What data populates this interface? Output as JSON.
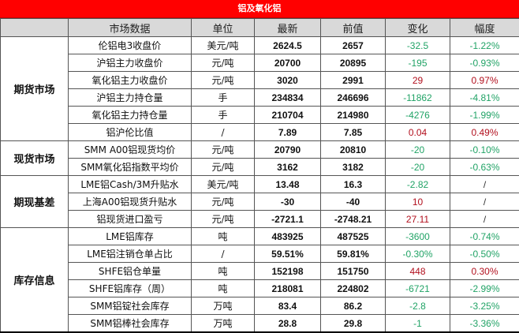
{
  "title": "铝及氧化铝",
  "colors": {
    "title_bg": "#ff0000",
    "header_bg": "#d9d9d9",
    "negative": "#21a366",
    "positive": "#b2101e"
  },
  "headers": [
    "",
    "市场数据",
    "单位",
    "最新",
    "前值",
    "变化",
    "幅度"
  ],
  "groups": [
    {
      "category": "期货市场",
      "rows": [
        {
          "name": "伦铝电3收盘价",
          "unit": "美元/吨",
          "latest": "2624.5",
          "prev": "2657",
          "change": "-32.5",
          "pct": "-1.22%",
          "dir": "neg"
        },
        {
          "name": "沪铝主力收盘价",
          "unit": "元/吨",
          "latest": "20700",
          "prev": "20895",
          "change": "-195",
          "pct": "-0.93%",
          "dir": "neg"
        },
        {
          "name": "氧化铝主力收盘价",
          "unit": "元/吨",
          "latest": "3020",
          "prev": "2991",
          "change": "29",
          "pct": "0.97%",
          "dir": "pos"
        },
        {
          "name": "沪铝主力持仓量",
          "unit": "手",
          "latest": "234834",
          "prev": "246696",
          "change": "-11862",
          "pct": "-4.81%",
          "dir": "neg"
        },
        {
          "name": "氧化铝主力持仓量",
          "unit": "手",
          "latest": "210704",
          "prev": "214980",
          "change": "-4276",
          "pct": "-1.99%",
          "dir": "neg"
        },
        {
          "name": "铝沪伦比值",
          "unit": "/",
          "latest": "7.89",
          "prev": "7.85",
          "change": "0.04",
          "pct": "0.49%",
          "dir": "pos"
        }
      ]
    },
    {
      "category": "现货市场",
      "rows": [
        {
          "name": "SMM A00铝现货均价",
          "unit": "元/吨",
          "latest": "20790",
          "prev": "20810",
          "change": "-20",
          "pct": "-0.10%",
          "dir": "neg"
        },
        {
          "name": "SMM氧化铝指数平均价",
          "unit": "元/吨",
          "latest": "3162",
          "prev": "3182",
          "change": "-20",
          "pct": "-0.63%",
          "dir": "neg"
        }
      ]
    },
    {
      "category": "期现基差",
      "rows": [
        {
          "name": "LME铝Cash/3M升贴水",
          "unit": "美元/吨",
          "latest": "13.48",
          "prev": "16.3",
          "change": "-2.82",
          "pct": "/",
          "dir": "neg"
        },
        {
          "name": "上海A00铝现货升贴水",
          "unit": "元/吨",
          "latest": "-30",
          "prev": "-40",
          "change": "10",
          "pct": "/",
          "dir": "pos"
        },
        {
          "name": "铝现货进口盈亏",
          "unit": "元/吨",
          "latest": "-2721.1",
          "prev": "-2748.21",
          "change": "27.11",
          "pct": "/",
          "dir": "pos"
        }
      ]
    },
    {
      "category": "库存信息",
      "rows": [
        {
          "name": "LME铝库存",
          "unit": "吨",
          "latest": "483925",
          "prev": "487525",
          "change": "-3600",
          "pct": "-0.74%",
          "dir": "neg"
        },
        {
          "name": "LME铝注销仓单占比",
          "unit": "/",
          "latest": "59.51%",
          "prev": "59.81%",
          "change": "-0.30%",
          "pct": "-0.50%",
          "dir": "neg"
        },
        {
          "name": "SHFE铝仓单量",
          "unit": "吨",
          "latest": "152198",
          "prev": "151750",
          "change": "448",
          "pct": "0.30%",
          "dir": "pos"
        },
        {
          "name": "SHFE铝库存（周）",
          "unit": "吨",
          "latest": "218081",
          "prev": "224802",
          "change": "-6721",
          "pct": "-2.99%",
          "dir": "neg"
        },
        {
          "name": "SMM铝锭社会库存",
          "unit": "万吨",
          "latest": "83.4",
          "prev": "86.2",
          "change": "-2.8",
          "pct": "-3.25%",
          "dir": "neg"
        },
        {
          "name": "SMM铝棒社会库存",
          "unit": "万吨",
          "latest": "28.8",
          "prev": "29.8",
          "change": "-1",
          "pct": "-3.36%",
          "dir": "neg"
        }
      ]
    }
  ]
}
